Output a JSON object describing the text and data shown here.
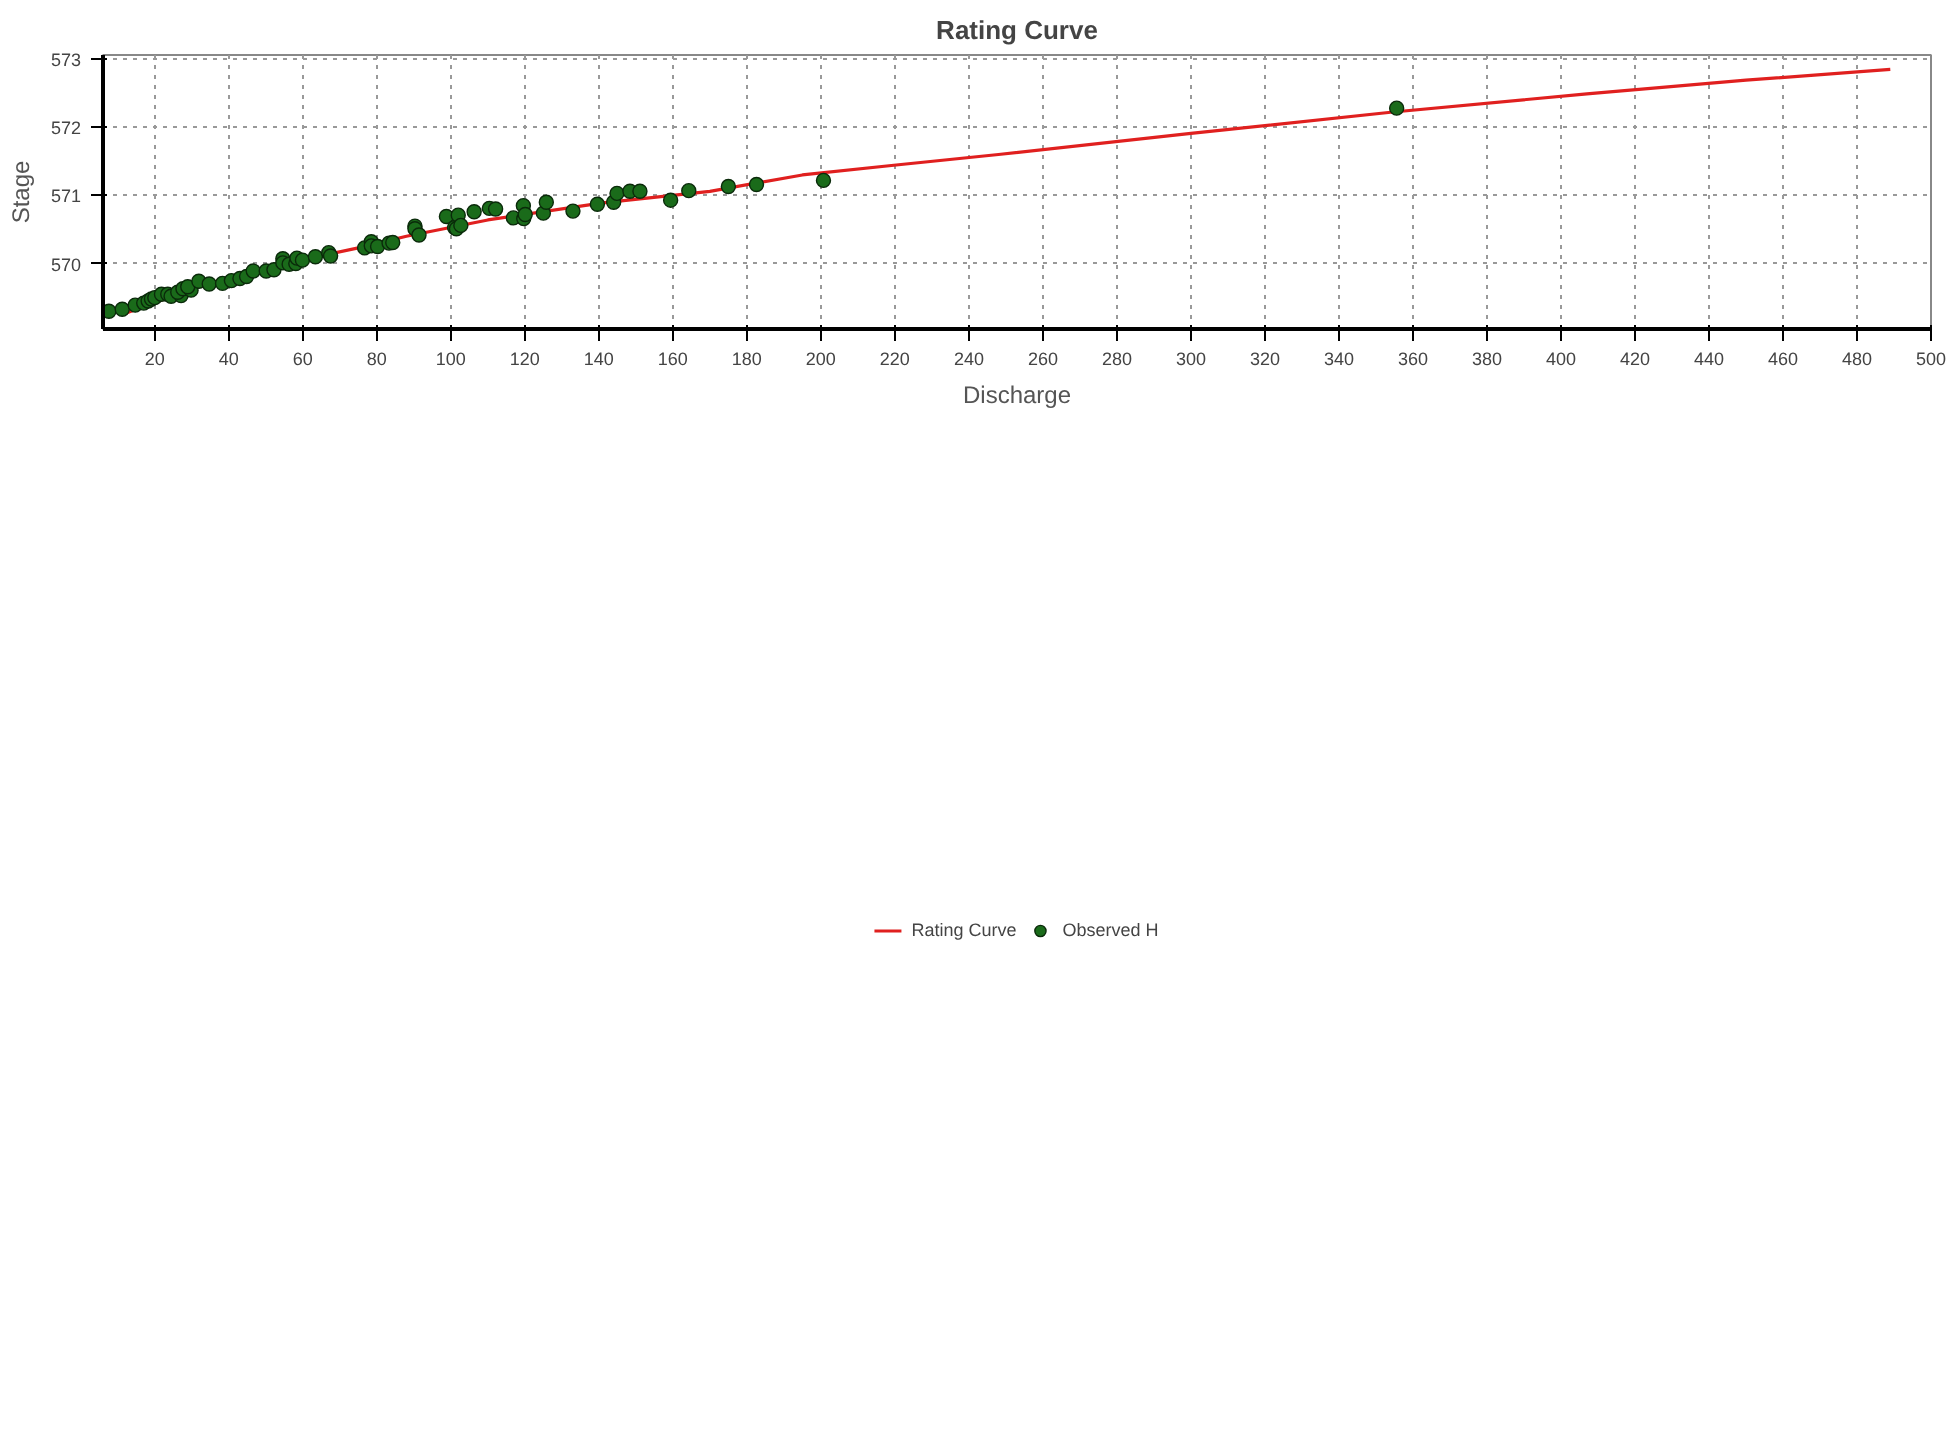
{
  "chart_data": {
    "type": "scatter",
    "title": "Rating Curve",
    "xlabel": "Discharge",
    "ylabel": "Stage",
    "xlim": [
      6,
      500
    ],
    "ylim": [
      569.04,
      573.06
    ],
    "xticks": [
      20,
      40,
      60,
      80,
      100,
      120,
      140,
      160,
      180,
      200,
      220,
      240,
      260,
      280,
      300,
      320,
      340,
      360,
      380,
      400,
      420,
      440,
      460,
      480,
      500
    ],
    "yticks": [
      570,
      571,
      572,
      573
    ],
    "grid": true,
    "legend": "bottom",
    "marker": "circle",
    "series": [
      {
        "name": "Rating Curve",
        "type": "line",
        "line_style": "solid",
        "marker": "none",
        "color": "#e0201f",
        "x": [
          11,
          20,
          35,
          50,
          62,
          75,
          88,
          110,
          141,
          170,
          195,
          221,
          248,
          300,
          354,
          407,
          450,
          489
        ],
        "values": [
          569.25,
          569.43,
          569.72,
          569.88,
          570.08,
          570.23,
          570.4,
          570.64,
          570.89,
          571.06,
          571.3,
          571.45,
          571.6,
          571.91,
          572.22,
          572.49,
          572.69,
          572.85
        ]
      },
      {
        "name": "Observed H",
        "color": "#1a6b1a",
        "x": [
          7.6,
          11.2,
          14.7,
          17.0,
          18.2,
          19.1,
          20.0,
          21.8,
          23.5,
          24.4,
          27.1,
          26.2,
          27.6,
          29.8,
          28.9,
          31.9,
          34.7,
          38.3,
          40.7,
          43.0,
          44.8,
          46.6,
          50.1,
          52.2,
          54.6,
          54.6,
          56.3,
          58.1,
          58.4,
          59.9,
          63.4,
          67.0,
          67.5,
          76.7,
          78.5,
          78.5,
          80.2,
          83.3,
          84.3,
          90.3,
          90.3,
          91.4,
          98.8,
          101.0,
          101.5,
          102.0,
          102.7,
          106.3,
          110.4,
          112.1,
          116.9,
          119.7,
          119.6,
          120.1,
          125.0,
          125.8,
          133.0,
          139.6,
          144.0,
          144.9,
          148.4,
          151.1,
          159.4,
          164.3,
          175.0,
          182.6,
          200.7,
          355.6
        ],
        "values": [
          569.3,
          569.33,
          569.39,
          569.42,
          569.45,
          569.48,
          569.5,
          569.55,
          569.55,
          569.52,
          569.53,
          569.58,
          569.63,
          569.61,
          569.66,
          569.74,
          569.7,
          569.71,
          569.75,
          569.78,
          569.81,
          569.89,
          569.89,
          569.91,
          570.07,
          570.01,
          569.99,
          570.0,
          570.08,
          570.05,
          570.1,
          570.16,
          570.11,
          570.23,
          570.32,
          570.26,
          570.25,
          570.3,
          570.31,
          570.55,
          570.51,
          570.42,
          570.69,
          570.53,
          570.51,
          570.71,
          570.56,
          570.76,
          570.81,
          570.8,
          570.67,
          570.66,
          570.85,
          570.72,
          570.74,
          570.9,
          570.77,
          570.87,
          570.9,
          571.03,
          571.06,
          571.06,
          570.93,
          571.07,
          571.13,
          571.16,
          571.22,
          572.28
        ]
      }
    ]
  }
}
